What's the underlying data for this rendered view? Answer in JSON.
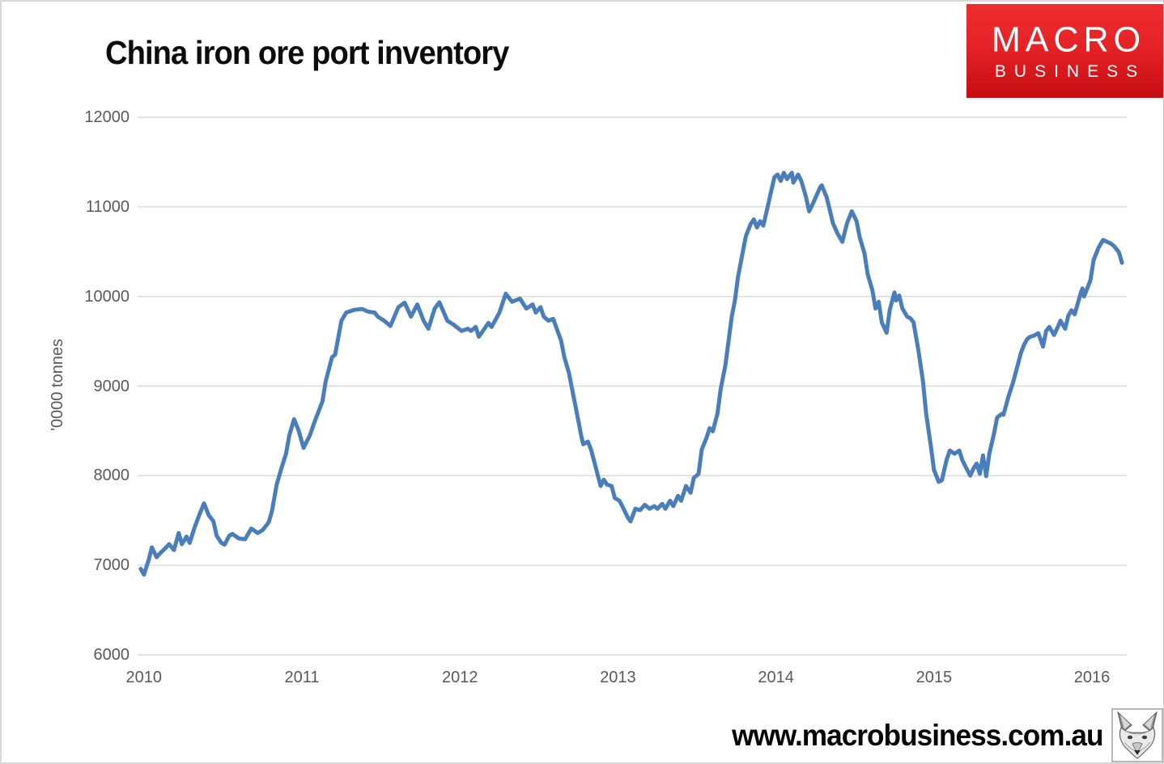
{
  "header": {
    "title": "China iron ore port inventory"
  },
  "logo": {
    "line1": "MACRO",
    "line2": "BUSINESS",
    "bg_color": "#e42327",
    "text_color": "#ffffff"
  },
  "footer": {
    "url": "www.macrobusiness.com.au",
    "wolf_icon": "wolf-head-sketch"
  },
  "chart_data": {
    "type": "line",
    "title": "China iron ore port inventory",
    "xlabel": "",
    "ylabel": "'0000 tonnes",
    "x_ticks": [
      2010,
      2011,
      2012,
      2013,
      2014,
      2015,
      2016
    ],
    "y_ticks": [
      12000,
      11000,
      10000,
      9000,
      8000,
      7000,
      6000
    ],
    "ylim": [
      6000,
      12000
    ],
    "xlim": [
      2009.96,
      2016.22
    ],
    "grid": "horizontal gridlines only",
    "legend": "none",
    "line_color": "#4a7ebb",
    "gridline_color": "#d9d9d9",
    "tick_label_color": "#595959",
    "series": [
      {
        "name": "China iron ore port inventory ('0000 tonnes)",
        "points": [
          [
            2009.98,
            6960
          ],
          [
            2010.0,
            6895
          ],
          [
            2010.03,
            7060
          ],
          [
            2010.05,
            7200
          ],
          [
            2010.08,
            7090
          ],
          [
            2010.1,
            7130
          ],
          [
            2010.13,
            7180
          ],
          [
            2010.16,
            7235
          ],
          [
            2010.19,
            7170
          ],
          [
            2010.22,
            7360
          ],
          [
            2010.24,
            7235
          ],
          [
            2010.27,
            7320
          ],
          [
            2010.29,
            7250
          ],
          [
            2010.32,
            7420
          ],
          [
            2010.35,
            7560
          ],
          [
            2010.38,
            7690
          ],
          [
            2010.41,
            7560
          ],
          [
            2010.44,
            7490
          ],
          [
            2010.46,
            7330
          ],
          [
            2010.49,
            7250
          ],
          [
            2010.51,
            7230
          ],
          [
            2010.54,
            7330
          ],
          [
            2010.56,
            7350
          ],
          [
            2010.6,
            7300
          ],
          [
            2010.64,
            7290
          ],
          [
            2010.68,
            7410
          ],
          [
            2010.72,
            7360
          ],
          [
            2010.75,
            7390
          ],
          [
            2010.79,
            7480
          ],
          [
            2010.81,
            7600
          ],
          [
            2010.84,
            7900
          ],
          [
            2010.87,
            8080
          ],
          [
            2010.9,
            8250
          ],
          [
            2010.92,
            8450
          ],
          [
            2010.95,
            8630
          ],
          [
            2010.98,
            8500
          ],
          [
            2011.01,
            8310
          ],
          [
            2011.05,
            8450
          ],
          [
            2011.08,
            8600
          ],
          [
            2011.13,
            8830
          ],
          [
            2011.15,
            9050
          ],
          [
            2011.19,
            9320
          ],
          [
            2011.21,
            9350
          ],
          [
            2011.25,
            9730
          ],
          [
            2011.28,
            9820
          ],
          [
            2011.33,
            9850
          ],
          [
            2011.38,
            9860
          ],
          [
            2011.42,
            9830
          ],
          [
            2011.46,
            9820
          ],
          [
            2011.48,
            9775
          ],
          [
            2011.52,
            9730
          ],
          [
            2011.56,
            9670
          ],
          [
            2011.61,
            9880
          ],
          [
            2011.65,
            9930
          ],
          [
            2011.69,
            9775
          ],
          [
            2011.73,
            9910
          ],
          [
            2011.77,
            9730
          ],
          [
            2011.8,
            9640
          ],
          [
            2011.84,
            9865
          ],
          [
            2011.87,
            9935
          ],
          [
            2011.92,
            9730
          ],
          [
            2011.96,
            9685
          ],
          [
            2012.01,
            9615
          ],
          [
            2012.05,
            9640
          ],
          [
            2012.07,
            9615
          ],
          [
            2012.1,
            9660
          ],
          [
            2012.12,
            9550
          ],
          [
            2012.18,
            9705
          ],
          [
            2012.2,
            9660
          ],
          [
            2012.25,
            9820
          ],
          [
            2012.29,
            10030
          ],
          [
            2012.33,
            9940
          ],
          [
            2012.38,
            9975
          ],
          [
            2012.42,
            9865
          ],
          [
            2012.46,
            9910
          ],
          [
            2012.48,
            9820
          ],
          [
            2012.51,
            9880
          ],
          [
            2012.53,
            9775
          ],
          [
            2012.56,
            9730
          ],
          [
            2012.59,
            9750
          ],
          [
            2012.64,
            9505
          ],
          [
            2012.66,
            9325
          ],
          [
            2012.69,
            9145
          ],
          [
            2012.71,
            8965
          ],
          [
            2012.74,
            8695
          ],
          [
            2012.77,
            8425
          ],
          [
            2012.78,
            8350
          ],
          [
            2012.81,
            8380
          ],
          [
            2012.83,
            8290
          ],
          [
            2012.87,
            8020
          ],
          [
            2012.89,
            7885
          ],
          [
            2012.91,
            7955
          ],
          [
            2012.93,
            7900
          ],
          [
            2012.96,
            7885
          ],
          [
            2012.98,
            7750
          ],
          [
            2013.01,
            7720
          ],
          [
            2013.04,
            7615
          ],
          [
            2013.06,
            7540
          ],
          [
            2013.08,
            7490
          ],
          [
            2013.11,
            7630
          ],
          [
            2013.14,
            7615
          ],
          [
            2013.17,
            7675
          ],
          [
            2013.2,
            7630
          ],
          [
            2013.23,
            7660
          ],
          [
            2013.25,
            7630
          ],
          [
            2013.28,
            7685
          ],
          [
            2013.3,
            7630
          ],
          [
            2013.33,
            7720
          ],
          [
            2013.35,
            7660
          ],
          [
            2013.38,
            7775
          ],
          [
            2013.4,
            7720
          ],
          [
            2013.43,
            7885
          ],
          [
            2013.46,
            7810
          ],
          [
            2013.48,
            7975
          ],
          [
            2013.51,
            8020
          ],
          [
            2013.53,
            8290
          ],
          [
            2013.56,
            8420
          ],
          [
            2013.58,
            8530
          ],
          [
            2013.6,
            8495
          ],
          [
            2013.63,
            8695
          ],
          [
            2013.65,
            8965
          ],
          [
            2013.68,
            9235
          ],
          [
            2013.7,
            9505
          ],
          [
            2013.72,
            9775
          ],
          [
            2013.74,
            9955
          ],
          [
            2013.76,
            10220
          ],
          [
            2013.79,
            10495
          ],
          [
            2013.81,
            10675
          ],
          [
            2013.84,
            10810
          ],
          [
            2013.86,
            10860
          ],
          [
            2013.88,
            10770
          ],
          [
            2013.9,
            10840
          ],
          [
            2013.92,
            10790
          ],
          [
            2013.95,
            11020
          ],
          [
            2013.97,
            11180
          ],
          [
            2013.99,
            11330
          ],
          [
            2014.01,
            11360
          ],
          [
            2014.03,
            11290
          ],
          [
            2014.05,
            11380
          ],
          [
            2014.07,
            11310
          ],
          [
            2014.1,
            11380
          ],
          [
            2014.11,
            11270
          ],
          [
            2014.14,
            11360
          ],
          [
            2014.16,
            11290
          ],
          [
            2014.19,
            11110
          ],
          [
            2014.21,
            10950
          ],
          [
            2014.24,
            11060
          ],
          [
            2014.28,
            11220
          ],
          [
            2014.29,
            11240
          ],
          [
            2014.32,
            11110
          ],
          [
            2014.34,
            10970
          ],
          [
            2014.36,
            10820
          ],
          [
            2014.39,
            10700
          ],
          [
            2014.42,
            10610
          ],
          [
            2014.45,
            10820
          ],
          [
            2014.48,
            10950
          ],
          [
            2014.51,
            10840
          ],
          [
            2014.53,
            10660
          ],
          [
            2014.56,
            10480
          ],
          [
            2014.58,
            10250
          ],
          [
            2014.61,
            10070
          ],
          [
            2014.63,
            9865
          ],
          [
            2014.65,
            9940
          ],
          [
            2014.67,
            9710
          ],
          [
            2014.7,
            9595
          ],
          [
            2014.72,
            9850
          ],
          [
            2014.75,
            10045
          ],
          [
            2014.76,
            9955
          ],
          [
            2014.78,
            10010
          ],
          [
            2014.8,
            9865
          ],
          [
            2014.83,
            9775
          ],
          [
            2014.85,
            9757
          ],
          [
            2014.87,
            9712
          ],
          [
            2014.9,
            9415
          ],
          [
            2014.93,
            9055
          ],
          [
            2014.95,
            8695
          ],
          [
            2014.98,
            8335
          ],
          [
            2015.0,
            8065
          ],
          [
            2015.03,
            7930
          ],
          [
            2015.05,
            7950
          ],
          [
            2015.08,
            8180
          ],
          [
            2015.1,
            8280
          ],
          [
            2015.13,
            8245
          ],
          [
            2015.16,
            8280
          ],
          [
            2015.18,
            8170
          ],
          [
            2015.21,
            8065
          ],
          [
            2015.23,
            8000
          ],
          [
            2015.25,
            8080
          ],
          [
            2015.27,
            8135
          ],
          [
            2015.29,
            8020
          ],
          [
            2015.31,
            8225
          ],
          [
            2015.33,
            7995
          ],
          [
            2015.35,
            8245
          ],
          [
            2015.38,
            8470
          ],
          [
            2015.4,
            8650
          ],
          [
            2015.43,
            8690
          ],
          [
            2015.44,
            8680
          ],
          [
            2015.47,
            8875
          ],
          [
            2015.5,
            9040
          ],
          [
            2015.53,
            9235
          ],
          [
            2015.55,
            9370
          ],
          [
            2015.57,
            9460
          ],
          [
            2015.59,
            9525
          ],
          [
            2015.61,
            9550
          ],
          [
            2015.63,
            9560
          ],
          [
            2015.66,
            9590
          ],
          [
            2015.69,
            9440
          ],
          [
            2015.71,
            9615
          ],
          [
            2015.73,
            9660
          ],
          [
            2015.76,
            9570
          ],
          [
            2015.79,
            9685
          ],
          [
            2015.8,
            9730
          ],
          [
            2015.83,
            9640
          ],
          [
            2015.85,
            9785
          ],
          [
            2015.87,
            9845
          ],
          [
            2015.89,
            9800
          ],
          [
            2015.93,
            10045
          ],
          [
            2015.94,
            10090
          ],
          [
            2015.95,
            10000
          ],
          [
            2015.99,
            10180
          ],
          [
            2016.01,
            10405
          ],
          [
            2016.04,
            10540
          ],
          [
            2016.07,
            10630
          ],
          [
            2016.12,
            10590
          ],
          [
            2016.14,
            10560
          ],
          [
            2016.17,
            10495
          ],
          [
            2016.19,
            10375
          ]
        ]
      }
    ]
  }
}
